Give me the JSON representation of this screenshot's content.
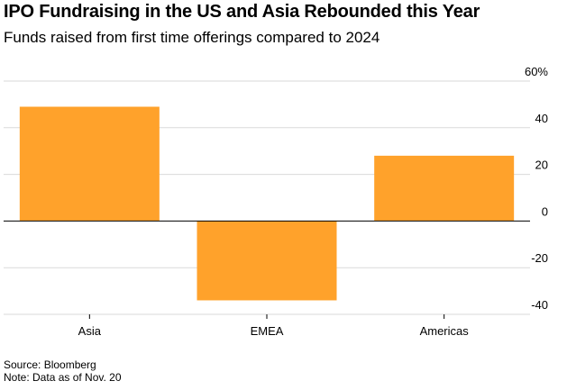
{
  "header": {
    "title": "IPO Fundraising in the US and Asia Rebounded this Year",
    "subtitle": "Funds raised from first time offerings compared to 2024"
  },
  "footer": {
    "source": "Source: Bloomberg",
    "note": "Note: Data as of Nov. 20"
  },
  "colors": {
    "bar": "#FFA22B",
    "grid": "#DADADA",
    "zero_line": "#000000",
    "text": "#000000"
  },
  "chart_data": {
    "type": "bar",
    "title": "IPO Fundraising in the US and Asia Rebounded this Year",
    "subtitle": "Funds raised from first time offerings compared to 2024",
    "categories": [
      "Asia",
      "EMEA",
      "Americas"
    ],
    "values": [
      49,
      -34,
      28
    ],
    "ylim": [
      -40,
      60
    ],
    "yticks": [
      60,
      40,
      20,
      0,
      -20,
      -40
    ],
    "ytick_labels": [
      "60%",
      "40",
      "20",
      "0",
      "-20",
      "-40"
    ],
    "y_axis_position": "right",
    "xlabel": "",
    "ylabel": "",
    "grid": true
  }
}
